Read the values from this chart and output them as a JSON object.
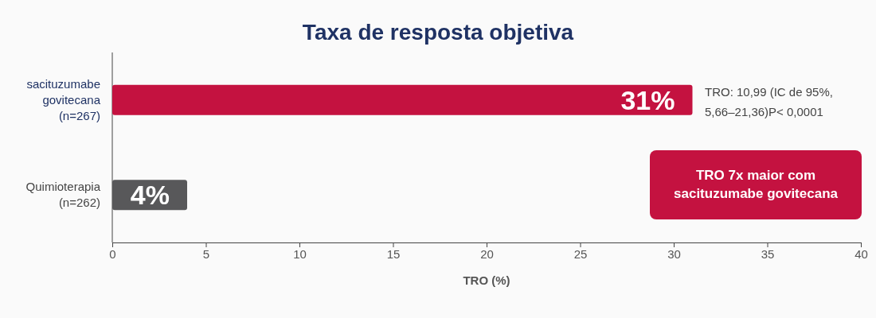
{
  "chart_data": {
    "type": "bar",
    "orientation": "horizontal",
    "title": "Taxa de resposta objetiva",
    "xlabel": "TRO (%)",
    "categories": [
      "sacituzumabe govitecana (n=267)",
      "Quimioterapia (n=262)"
    ],
    "values": [
      31,
      4
    ],
    "colors": [
      "#c41240",
      "#58585a"
    ],
    "value_labels": [
      "31%",
      "4%"
    ],
    "xlim": [
      0,
      40
    ],
    "xticks": [
      0,
      5,
      10,
      15,
      20,
      25,
      30,
      35,
      40
    ],
    "grid": false,
    "annotations": [
      "TRO: 10,99 (IC de 95%, 5,66–21,36)P< 0,0001",
      "TRO 7x maior com sacituzumabe govitecana"
    ]
  }
}
